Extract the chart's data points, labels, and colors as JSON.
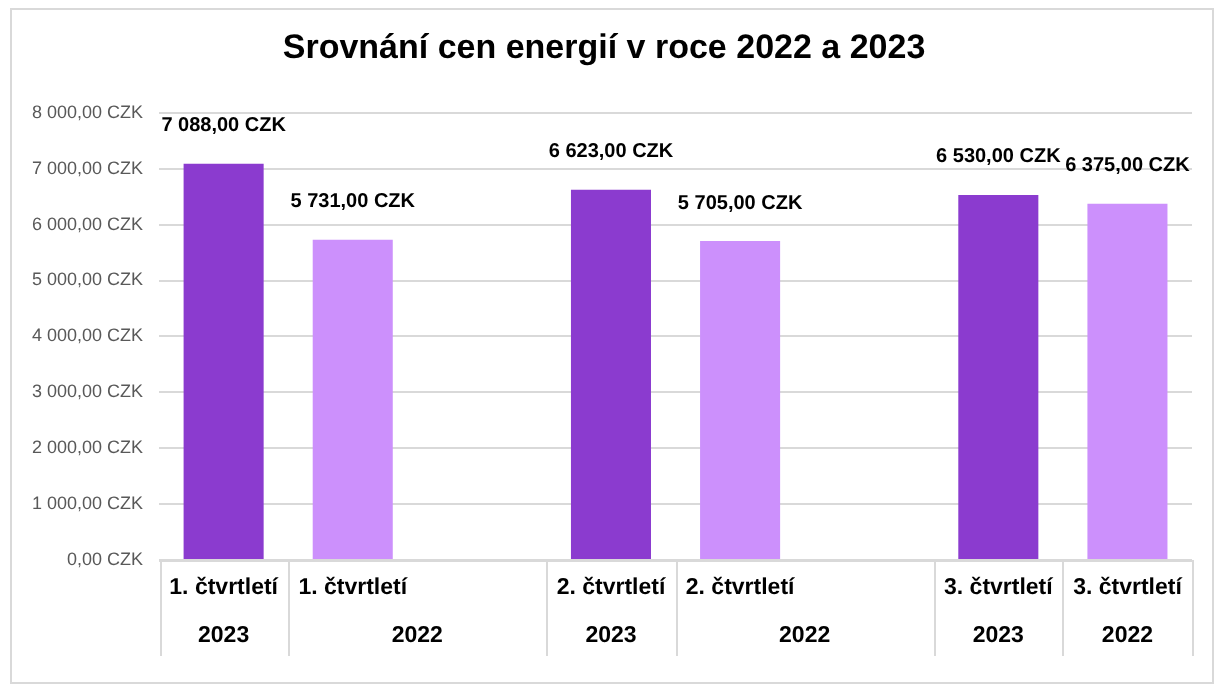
{
  "chart_data": {
    "type": "bar",
    "title": "Srovnání cen energií v roce 2022 a 2023",
    "categories": [
      "1. čtvrtletí 2023",
      "1. čtvrtletí 2022",
      null,
      "2. čtvrtletí 2023",
      "2. čtvrtletí 2022",
      null,
      "3. čtvrtletí 2023",
      "3. čtvrtletí 2022"
    ],
    "values": [
      7088,
      5731,
      null,
      6623,
      5705,
      null,
      6530,
      6375
    ],
    "colors": [
      "#8b3bcf",
      "#cc90fc",
      null,
      "#8b3bcf",
      "#cc90fc",
      null,
      "#8b3bcf",
      "#cc90fc"
    ],
    "value_labels": [
      "7 088,00 CZK",
      "5 731,00 CZK",
      null,
      "6 623,00 CZK",
      "5 705,00 CZK",
      null,
      "6 530,00 CZK",
      "6 375,00 CZK"
    ],
    "ylim": [
      0,
      8000
    ],
    "yticks": [
      {
        "value": 0,
        "label": "0,00 CZK"
      },
      {
        "value": 1000,
        "label": "1 000,00 CZK"
      },
      {
        "value": 2000,
        "label": "2 000,00 CZK"
      },
      {
        "value": 3000,
        "label": "3 000,00 CZK"
      },
      {
        "value": 4000,
        "label": "4 000,00 CZK"
      },
      {
        "value": 5000,
        "label": "5 000,00 CZK"
      },
      {
        "value": 6000,
        "label": "6 000,00 CZK"
      },
      {
        "value": 7000,
        "label": "7 000,00 CZK"
      },
      {
        "value": 8000,
        "label": "8 000,00 CZK"
      }
    ],
    "grid": "y",
    "legend": false
  }
}
